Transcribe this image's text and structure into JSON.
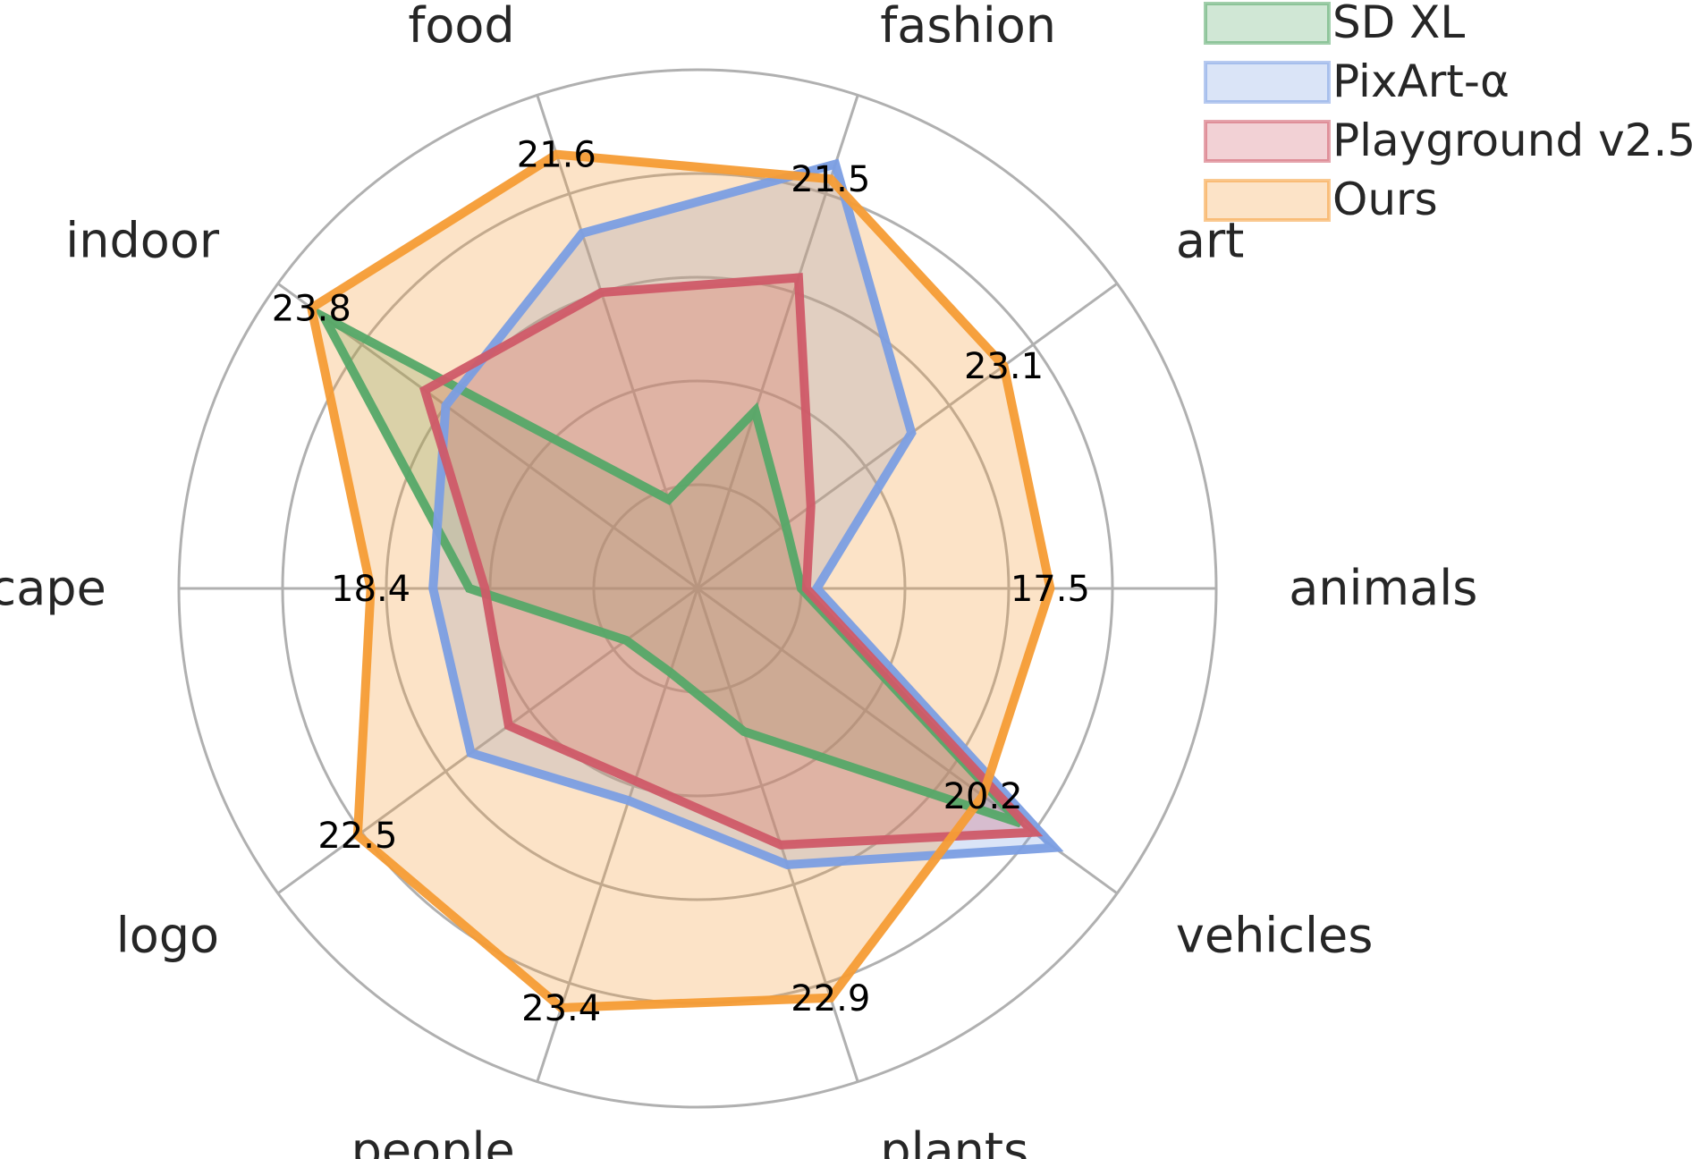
{
  "chart_data": {
    "type": "radar",
    "categories": [
      "animals",
      "art",
      "fashion",
      "food",
      "indoor",
      "landscape",
      "logo",
      "people",
      "plants",
      "vehicles"
    ],
    "rmax": 1.0,
    "grid_levels": [
      0.2,
      0.4,
      0.6,
      0.8,
      1.0
    ],
    "grid": true,
    "legend_placement": "top-right",
    "series": [
      {
        "name": "SD XL",
        "color": "#55a868",
        "values": [
          0.2,
          0.21,
          0.36,
          0.18,
          0.89,
          0.44,
          0.17,
          0.17,
          0.29,
          0.77
        ]
      },
      {
        "name": "PixArt-α",
        "color": "#7b9ee3",
        "values": [
          0.23,
          0.51,
          0.86,
          0.72,
          0.6,
          0.51,
          0.54,
          0.43,
          0.56,
          0.85
        ]
      },
      {
        "name": "Playground v2.5",
        "color": "#cf5a68",
        "values": [
          0.21,
          0.27,
          0.63,
          0.6,
          0.65,
          0.41,
          0.45,
          0.39,
          0.52,
          0.8
        ]
      },
      {
        "name": "Ours",
        "color": "#f59c35",
        "values": [
          0.68,
          0.73,
          0.83,
          0.88,
          0.92,
          0.63,
          0.81,
          0.85,
          0.83,
          0.68
        ]
      }
    ],
    "value_labels": [
      "17.5",
      "23.1",
      "21.5",
      "21.6",
      "23.8",
      "18.4",
      "22.5",
      "23.4",
      "22.9",
      "20.2"
    ]
  }
}
